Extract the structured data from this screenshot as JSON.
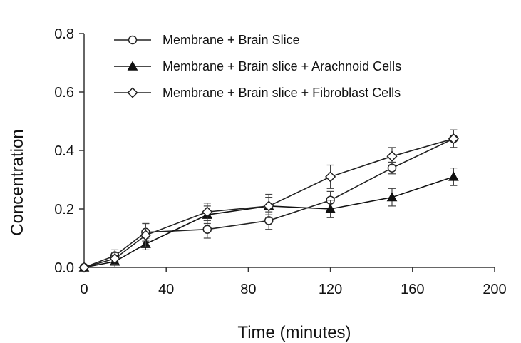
{
  "chart_data": {
    "type": "line",
    "title": "",
    "xlabel": "Time (minutes)",
    "ylabel": "Concentration",
    "xlim": [
      0,
      200
    ],
    "ylim": [
      0,
      0.8
    ],
    "x_ticks": [
      "0",
      "40",
      "80",
      "120",
      "160",
      "200"
    ],
    "y_ticks": [
      "0.0",
      "0.2",
      "0.4",
      "0.6",
      "0.8"
    ],
    "grid": false,
    "legend_position": "top-left",
    "x": [
      0,
      15,
      30,
      60,
      90,
      120,
      150,
      180
    ],
    "series": [
      {
        "name": "Membrane + Brain Slice",
        "marker": "open-circle",
        "color": "#222222",
        "values": [
          0.0,
          0.04,
          0.12,
          0.13,
          0.16,
          0.23,
          0.34,
          0.44
        ],
        "errors": [
          0,
          0.02,
          0.03,
          0.03,
          0.03,
          0.03,
          0.02,
          0.03
        ]
      },
      {
        "name": "Membrane + Brain slice + Arachnoid Cells",
        "marker": "filled-triangle",
        "color": "#111111",
        "values": [
          0.0,
          0.02,
          0.08,
          0.18,
          0.21,
          0.2,
          0.24,
          0.31
        ],
        "errors": [
          0,
          0.02,
          0.02,
          0.03,
          0.03,
          0.03,
          0.03,
          0.03
        ]
      },
      {
        "name": "Membrane + Brain slice + Fibroblast Cells",
        "marker": "open-diamond",
        "color": "#222222",
        "values": [
          0.0,
          0.03,
          0.11,
          0.19,
          0.21,
          0.31,
          0.38,
          0.44
        ],
        "errors": [
          0,
          0.02,
          0.04,
          0.03,
          0.04,
          0.04,
          0.03,
          0.03
        ]
      }
    ]
  }
}
